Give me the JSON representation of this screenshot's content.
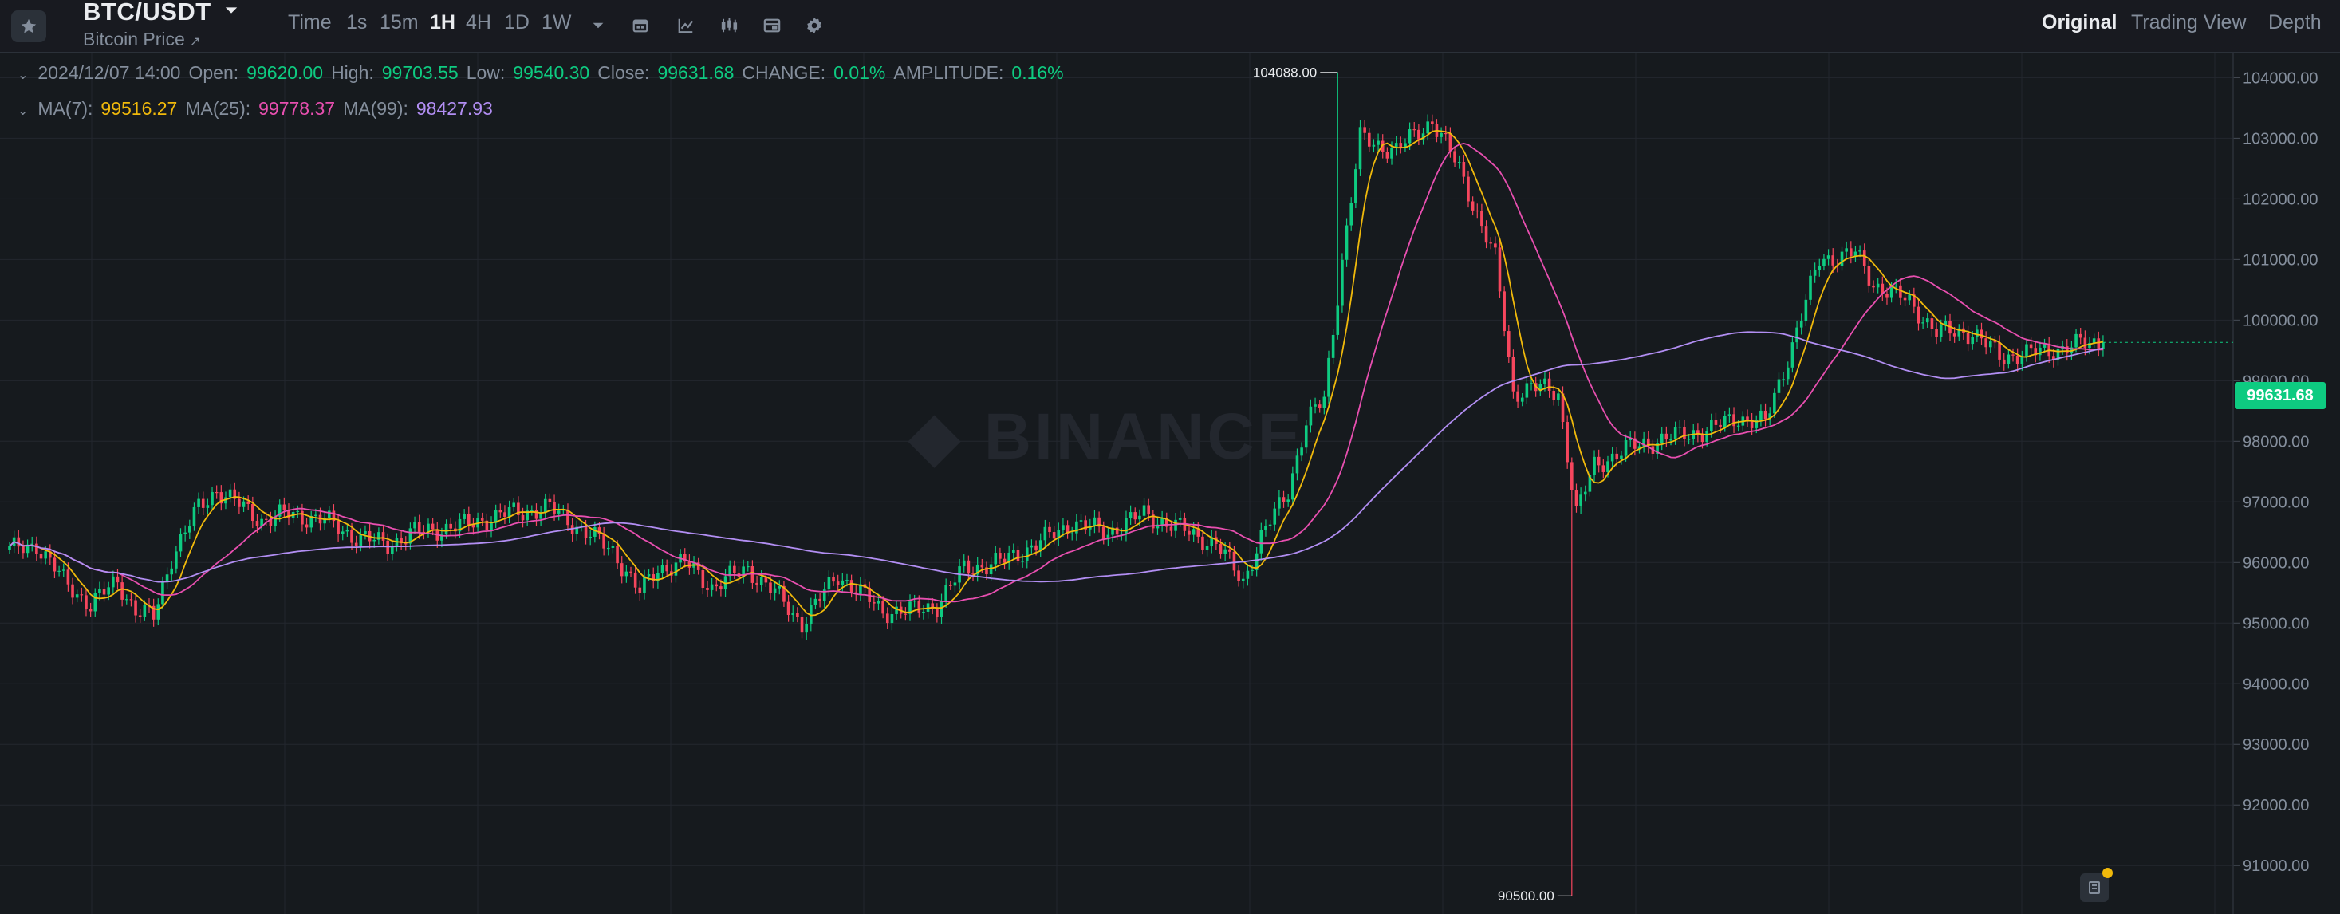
{
  "header": {
    "symbol": "BTC/USDT",
    "subtitle": "Bitcoin Price",
    "subtitle_icon": "external-arrow-icon",
    "favorite_icon": "star-icon",
    "timeframes": [
      {
        "label": "Time",
        "active": false
      },
      {
        "label": "1s",
        "active": false
      },
      {
        "label": "15m",
        "active": false
      },
      {
        "label": "1H",
        "active": true
      },
      {
        "label": "4H",
        "active": false
      },
      {
        "label": "1D",
        "active": false
      },
      {
        "label": "1W",
        "active": false
      }
    ],
    "tools": [
      "chevron-down-icon",
      "calendar-icon",
      "indicator-icon",
      "chart-type-icon",
      "layout-icon",
      "gear-icon"
    ],
    "views": [
      {
        "label": "Original",
        "active": true
      },
      {
        "label": "Trading View",
        "active": false
      },
      {
        "label": "Depth",
        "active": false
      }
    ]
  },
  "ohlc": {
    "date": "2024/12/07 14:00",
    "open_label": "Open:",
    "open": "99620.00",
    "high_label": "High:",
    "high": "99703.55",
    "low_label": "Low:",
    "low": "99540.30",
    "close_label": "Close:",
    "close": "99631.68",
    "change_label": "CHANGE:",
    "change": "0.01%",
    "amp_label": "AMPLITUDE:",
    "amp": "0.16%"
  },
  "ma": {
    "ma7_label": "MA(7):",
    "ma7": "99516.27",
    "ma25_label": "MA(25):",
    "ma25": "99778.37",
    "ma99_label": "MA(99):",
    "ma99": "98427.93"
  },
  "colors": {
    "up": "#0ecb81",
    "down": "#f6465d",
    "ma7": "#f0b90b",
    "ma25": "#e84fb0",
    "ma99": "#b28ef3",
    "background": "#161a1e",
    "grid": "#23272e",
    "text_muted": "#848e9c"
  },
  "watermark": "BINANCE",
  "current_price": "99631.68",
  "chart_data": {
    "type": "candlestick",
    "interval": "1H",
    "y_axis": {
      "ticks": [
        "104000.00",
        "103000.00",
        "102000.00",
        "101000.00",
        "100000.00",
        "99000.00",
        "98000.00",
        "97000.00",
        "96000.00",
        "95000.00",
        "94000.00",
        "93000.00",
        "92000.00",
        "91000.00"
      ],
      "range": [
        90200,
        104400
      ]
    },
    "annotations": {
      "max_label": "104088.00",
      "max": 104088,
      "min_label": "90500.00",
      "min": 90500
    },
    "close_anchors": [
      [
        0,
        96200
      ],
      [
        6,
        96300
      ],
      [
        12,
        95700
      ],
      [
        18,
        95300
      ],
      [
        24,
        95700
      ],
      [
        28,
        95200
      ],
      [
        32,
        95100
      ],
      [
        36,
        96100
      ],
      [
        42,
        96900
      ],
      [
        46,
        97200
      ],
      [
        50,
        97000
      ],
      [
        56,
        96700
      ],
      [
        62,
        96800
      ],
      [
        70,
        96700
      ],
      [
        76,
        96450
      ],
      [
        84,
        96300
      ],
      [
        90,
        96500
      ],
      [
        100,
        96600
      ],
      [
        110,
        96800
      ],
      [
        120,
        96900
      ],
      [
        128,
        96500
      ],
      [
        134,
        96200
      ],
      [
        140,
        95500
      ],
      [
        144,
        95900
      ],
      [
        150,
        96000
      ],
      [
        156,
        95600
      ],
      [
        164,
        95900
      ],
      [
        170,
        95500
      ],
      [
        176,
        95000
      ],
      [
        184,
        95800
      ],
      [
        194,
        95200
      ],
      [
        200,
        95200
      ],
      [
        206,
        95300
      ],
      [
        212,
        95900
      ],
      [
        220,
        96000
      ],
      [
        228,
        96300
      ],
      [
        236,
        96650
      ],
      [
        244,
        96500
      ],
      [
        252,
        96800
      ],
      [
        262,
        96500
      ],
      [
        268,
        96300
      ],
      [
        274,
        95700
      ],
      [
        278,
        96400
      ],
      [
        284,
        97200
      ],
      [
        288,
        98300
      ],
      [
        292,
        98700
      ],
      [
        296,
        101000
      ],
      [
        300,
        103000
      ],
      [
        308,
        102800
      ],
      [
        316,
        103300
      ],
      [
        322,
        102500
      ],
      [
        330,
        101000
      ],
      [
        334,
        98800
      ],
      [
        338,
        98900
      ],
      [
        344,
        98800
      ],
      [
        348,
        96800
      ],
      [
        352,
        97600
      ],
      [
        360,
        97900
      ],
      [
        368,
        98050
      ],
      [
        378,
        98200
      ],
      [
        384,
        98400
      ],
      [
        390,
        98300
      ],
      [
        396,
        99600
      ],
      [
        402,
        101000
      ],
      [
        410,
        101100
      ],
      [
        414,
        100600
      ],
      [
        422,
        100300
      ],
      [
        428,
        99800
      ],
      [
        436,
        99800
      ],
      [
        442,
        99400
      ],
      [
        452,
        99480
      ],
      [
        460,
        99600
      ],
      [
        465,
        99632
      ]
    ],
    "moving_averages": [
      {
        "name": "MA(7)",
        "period": 7
      },
      {
        "name": "MA(25)",
        "period": 25
      },
      {
        "name": "MA(99)",
        "period": 99
      }
    ]
  }
}
